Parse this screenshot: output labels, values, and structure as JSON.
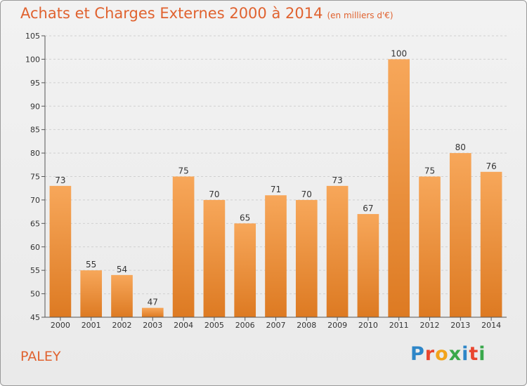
{
  "title": "Achats et Charges Externes 2000 à 2014",
  "subtitle": "(en milliers d'€)",
  "commune": "PALEY",
  "logo": {
    "letters": [
      "P",
      "r",
      "o",
      "x",
      "i",
      "t",
      "i"
    ],
    "colors": [
      "#2e86c8",
      "#e9462f",
      "#f2a31b",
      "#3aa84b",
      "#2e86c8",
      "#e9462f",
      "#3aa84b"
    ]
  },
  "colors": {
    "bar_top": "#f7a75a",
    "bar_bottom": "#dd7a22",
    "title": "#e0622f",
    "grid": "#d0d0d0"
  },
  "chart_data": {
    "type": "bar",
    "title": "Achats et Charges Externes 2000 à 2014",
    "subtitle": "(en milliers d'€)",
    "xlabel": "",
    "ylabel": "",
    "ylim": [
      45,
      105
    ],
    "yticks": [
      45,
      50,
      55,
      60,
      65,
      70,
      75,
      80,
      85,
      90,
      95,
      100,
      105
    ],
    "grid": true,
    "categories": [
      "2000",
      "2001",
      "2002",
      "2003",
      "2004",
      "2005",
      "2006",
      "2007",
      "2008",
      "2009",
      "2010",
      "2011",
      "2012",
      "2013",
      "2014"
    ],
    "values": [
      73,
      55,
      54,
      47,
      75,
      70,
      65,
      71,
      70,
      73,
      67,
      100,
      75,
      80,
      76
    ]
  }
}
